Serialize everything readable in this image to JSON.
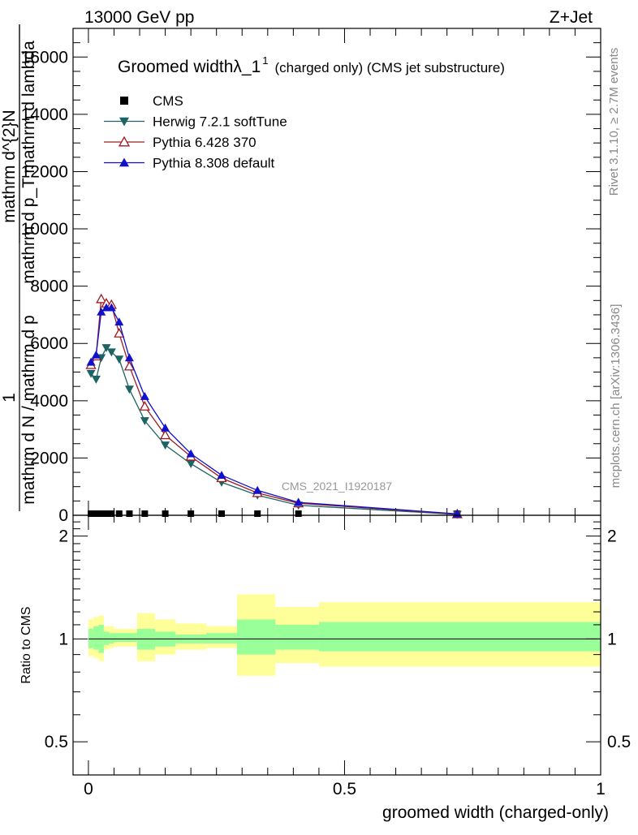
{
  "header": {
    "left": "13000 GeV pp",
    "right": "Z+Jet"
  },
  "side_labels": {
    "rivet": "Rivet 3.1.10, ≥ 2.7M events",
    "mcplots": "mcplots.cern.ch [arXiv:1306.3436]"
  },
  "watermark": "CMS_2021_I1920187",
  "chart_data": [
    {
      "type": "line",
      "title": "Groomed widthλ_1",
      "title_sup": "1",
      "title_suffix": "(charged only) (CMS jet substructure)",
      "ylabel_numerator": "1",
      "ylabel_denominator": "mathrm d N / mathrm d p",
      "ylabel_right_top": "mathrm d^{2}N",
      "ylabel_right_bottom": "mathrm d p_T mathrm d lambda",
      "xlim": [
        -0.03,
        1.0
      ],
      "ylim": [
        0,
        17000
      ],
      "y_ticks": [
        0,
        2000,
        4000,
        6000,
        8000,
        10000,
        12000,
        14000,
        16000
      ],
      "y_tick_labels": [
        "0",
        "2000",
        "4000",
        "6000",
        "8000",
        "10000",
        "12000",
        "14000",
        "16000"
      ],
      "legend_position": "top-left",
      "series": [
        {
          "name": "CMS",
          "color": "#000000",
          "marker": "square",
          "x": [
            0.005,
            0.015,
            0.025,
            0.035,
            0.045,
            0.06,
            0.08,
            0.11,
            0.15,
            0.2,
            0.26,
            0.33,
            0.41,
            0.72
          ],
          "y": [
            0,
            0,
            0,
            0,
            0,
            0,
            0,
            0,
            0,
            0,
            0,
            0,
            0,
            0
          ]
        },
        {
          "name": "Herwig 7.2.1 softTune",
          "color": "#1d6363",
          "marker": "triangle-down",
          "x": [
            0.005,
            0.015,
            0.025,
            0.035,
            0.045,
            0.06,
            0.08,
            0.11,
            0.15,
            0.2,
            0.26,
            0.33,
            0.41,
            0.72
          ],
          "y": [
            4950,
            4750,
            5500,
            5850,
            5700,
            5450,
            4400,
            3300,
            2450,
            1800,
            1150,
            700,
            350,
            30
          ]
        },
        {
          "name": "Pythia 6.428 370",
          "color": "#a11a22",
          "marker": "triangle-open",
          "x": [
            0.005,
            0.015,
            0.025,
            0.035,
            0.045,
            0.06,
            0.08,
            0.11,
            0.15,
            0.2,
            0.26,
            0.33,
            0.41,
            0.72
          ],
          "y": [
            5250,
            5550,
            7550,
            7400,
            7350,
            6350,
            5200,
            3800,
            2800,
            2050,
            1300,
            780,
            420,
            40
          ]
        },
        {
          "name": "Pythia 8.308 default",
          "color": "#1111cc",
          "marker": "triangle-up",
          "x": [
            0.005,
            0.015,
            0.025,
            0.035,
            0.045,
            0.06,
            0.08,
            0.11,
            0.15,
            0.2,
            0.26,
            0.33,
            0.41,
            0.72
          ],
          "y": [
            5350,
            5600,
            7100,
            7250,
            7250,
            6750,
            5500,
            4150,
            3050,
            2150,
            1400,
            870,
            450,
            50
          ]
        }
      ]
    },
    {
      "type": "area",
      "ylabel": "Ratio to CMS",
      "xlabel": "groomed width (charged-only)",
      "xlim": [
        -0.03,
        1.0
      ],
      "ylim": [
        0.4,
        2.3
      ],
      "y_ticks": [
        0.5,
        1,
        2
      ],
      "y_tick_labels": [
        "0.5",
        "1",
        "2"
      ],
      "x_ticks": [
        0,
        0.5,
        1
      ],
      "x_tick_labels": [
        "0",
        "0.5",
        "1"
      ],
      "reference": 1.0,
      "bins": [
        {
          "x0": 0.0,
          "x1": 0.01,
          "inner": [
            0.94,
            1.07
          ],
          "outer": [
            0.89,
            1.14
          ]
        },
        {
          "x0": 0.01,
          "x1": 0.02,
          "inner": [
            0.93,
            1.09
          ],
          "outer": [
            0.88,
            1.16
          ]
        },
        {
          "x0": 0.02,
          "x1": 0.03,
          "inner": [
            0.91,
            1.1
          ],
          "outer": [
            0.86,
            1.17
          ]
        },
        {
          "x0": 0.03,
          "x1": 0.04,
          "inner": [
            0.96,
            1.05
          ],
          "outer": [
            0.93,
            1.09
          ]
        },
        {
          "x0": 0.04,
          "x1": 0.05,
          "inner": [
            0.97,
            1.04
          ],
          "outer": [
            0.94,
            1.09
          ]
        },
        {
          "x0": 0.05,
          "x1": 0.07,
          "inner": [
            0.98,
            1.04
          ],
          "outer": [
            0.95,
            1.07
          ]
        },
        {
          "x0": 0.07,
          "x1": 0.095,
          "inner": [
            0.98,
            1.04
          ],
          "outer": [
            0.95,
            1.07
          ]
        },
        {
          "x0": 0.095,
          "x1": 0.13,
          "inner": [
            0.93,
            1.07
          ],
          "outer": [
            0.86,
            1.19
          ]
        },
        {
          "x0": 0.13,
          "x1": 0.17,
          "inner": [
            0.95,
            1.05
          ],
          "outer": [
            0.9,
            1.14
          ]
        },
        {
          "x0": 0.17,
          "x1": 0.23,
          "inner": [
            0.97,
            1.03
          ],
          "outer": [
            0.93,
            1.11
          ]
        },
        {
          "x0": 0.23,
          "x1": 0.29,
          "inner": [
            0.97,
            1.04
          ],
          "outer": [
            0.94,
            1.09
          ]
        },
        {
          "x0": 0.29,
          "x1": 0.365,
          "inner": [
            0.9,
            1.14
          ],
          "outer": [
            0.78,
            1.35
          ]
        },
        {
          "x0": 0.365,
          "x1": 0.45,
          "inner": [
            0.93,
            1.1
          ],
          "outer": [
            0.85,
            1.24
          ]
        },
        {
          "x0": 0.45,
          "x1": 1.0,
          "inner": [
            0.92,
            1.12
          ],
          "outer": [
            0.83,
            1.28
          ]
        }
      ]
    }
  ]
}
